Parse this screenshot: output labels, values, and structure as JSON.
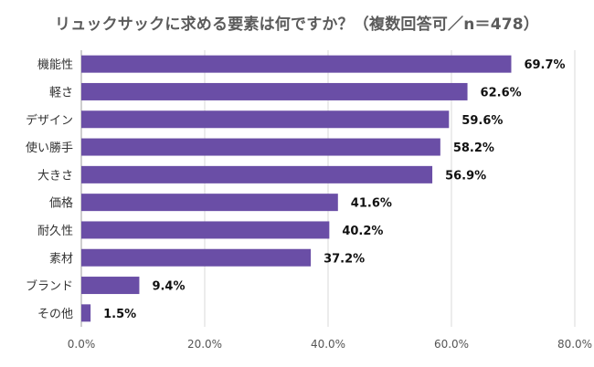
{
  "chart_data": {
    "type": "bar",
    "orientation": "horizontal",
    "title": "リュックサックに求める要素は何ですか？（複数回答可／n＝478）",
    "categories": [
      "機能性",
      "軽さ",
      "デザイン",
      "使い勝手",
      "大きさ",
      "価格",
      "耐久性",
      "素材",
      "ブランド",
      "その他"
    ],
    "values": [
      69.7,
      62.6,
      59.6,
      58.2,
      56.9,
      41.6,
      40.2,
      37.2,
      9.4,
      1.5
    ],
    "value_labels": [
      "69.7%",
      "62.6%",
      "59.6%",
      "58.2%",
      "56.9%",
      "41.6%",
      "40.2%",
      "37.2%",
      "9.4%",
      "1.5%"
    ],
    "xticks": [
      "0.0%",
      "20.0%",
      "40.0%",
      "60.0%",
      "80.0%"
    ],
    "xlim": [
      0,
      80
    ],
    "xlabel": "",
    "ylabel": "",
    "grid": true,
    "bar_color": "#6a4ea6"
  }
}
